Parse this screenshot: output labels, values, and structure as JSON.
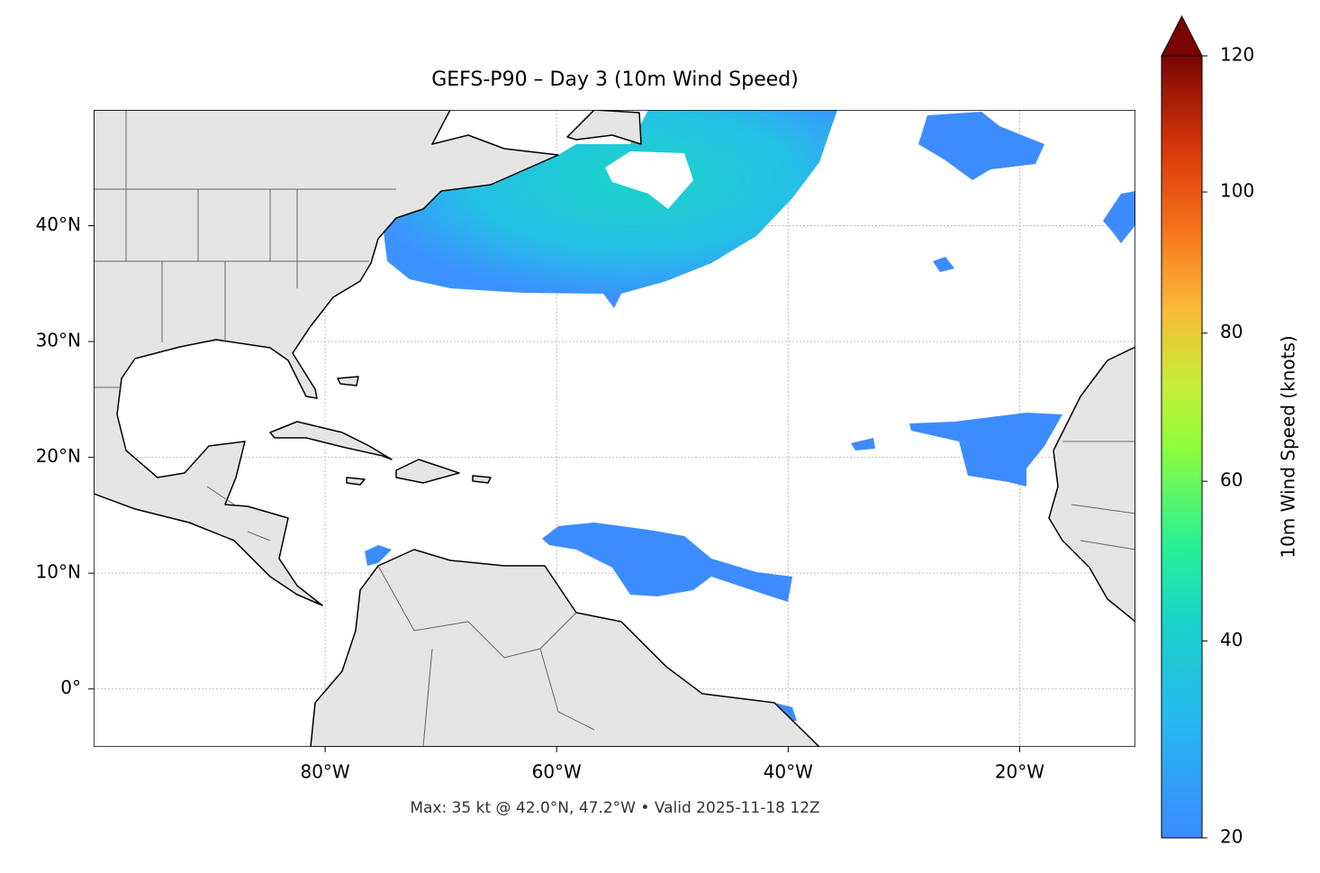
{
  "title": "GEFS-P90 – Day 3 (10m Wind Speed)",
  "caption": "Max: 35 kt @ 42.0°N, 47.2°W • Valid 2025-11-18 12Z",
  "map": {
    "xlim": [
      -100,
      -10
    ],
    "ylim": [
      -5,
      50
    ],
    "xticks": [
      {
        "value": -80,
        "label": "80°W"
      },
      {
        "value": -60,
        "label": "60°W"
      },
      {
        "value": -40,
        "label": "40°W"
      },
      {
        "value": -20,
        "label": "20°W"
      }
    ],
    "yticks": [
      {
        "value": 0,
        "label": "0°"
      },
      {
        "value": 10,
        "label": "10°N"
      },
      {
        "value": 20,
        "label": "20°N"
      },
      {
        "value": 30,
        "label": "30°N"
      },
      {
        "value": 40,
        "label": "40°N"
      }
    ],
    "grid": true
  },
  "colorbar": {
    "label": "10m Wind Speed (knots)",
    "lim": [
      20,
      120
    ],
    "ticks": [
      20,
      40,
      60,
      80,
      100,
      120
    ],
    "extend": "max"
  }
}
